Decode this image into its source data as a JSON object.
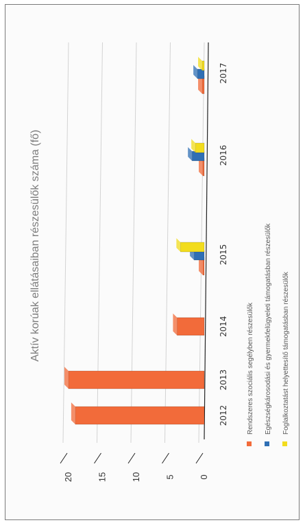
{
  "colors": {
    "series_0": "#f26b3a",
    "series_1": "#2f6fb4",
    "series_2": "#f2dc1e",
    "grid": "#d3d3d3",
    "axis": "#222222"
  },
  "chart_data": {
    "type": "bar",
    "title": "Aktív korúak ellátásaiban részesülők száma (fő)",
    "categories": [
      "2012",
      "2013",
      "2014",
      "2015",
      "2016",
      "2017"
    ],
    "series": [
      {
        "name": "Rendszeres szociális segélyben részesülők",
        "values": [
          19,
          20,
          4,
          0.2,
          0.2,
          0.3
        ]
      },
      {
        "name": "Egészségkárosodási és gyermekfelügyeleti támogatásban részesülők",
        "values": [
          0,
          0,
          0,
          1.5,
          1.8,
          1
        ]
      },
      {
        "name": "Foglalkoztatást helyettesítő támogatásban részesülők",
        "values": [
          0,
          0,
          0,
          3.5,
          1.3,
          0.3
        ]
      }
    ],
    "yticks": [
      0,
      5,
      10,
      15,
      20
    ],
    "ylim": [
      0,
      20
    ],
    "grid": true,
    "legend_position": "bottom"
  }
}
